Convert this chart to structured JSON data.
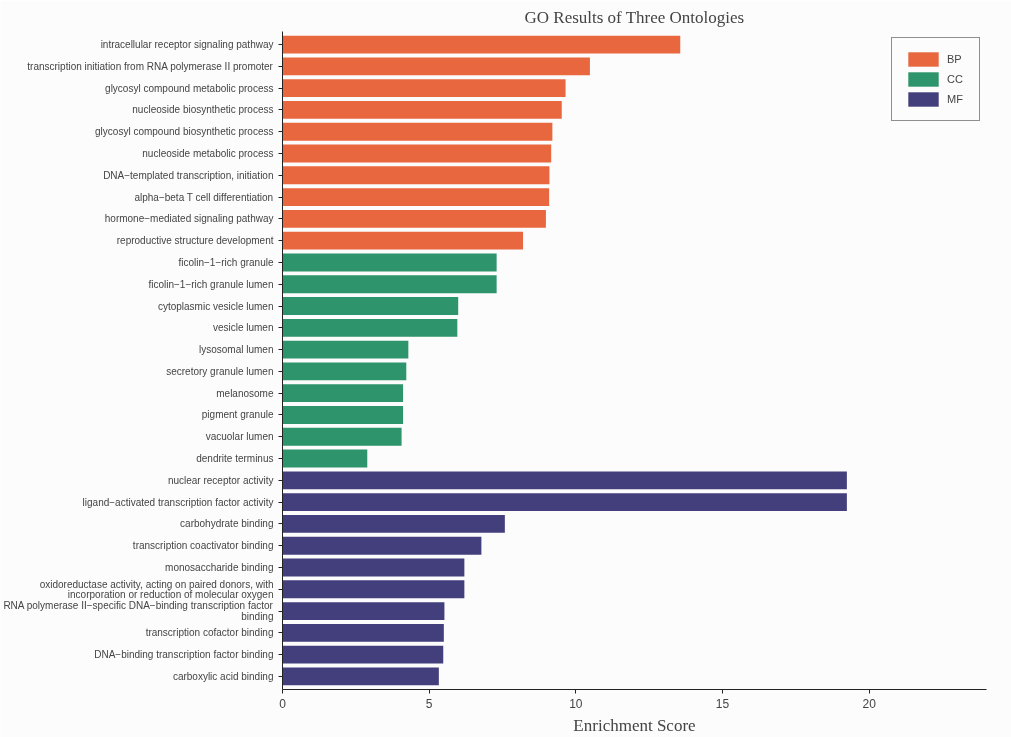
{
  "chart_data": {
    "type": "bar",
    "orientation": "horizontal",
    "title": "GO Results of Three Ontologies",
    "xlabel": "Enrichment Score",
    "categories": [
      "intracellular receptor signaling pathway",
      "transcription initiation from RNA polymerase II promoter",
      "glycosyl compound metabolic process",
      "nucleoside biosynthetic process",
      "glycosyl compound biosynthetic process",
      "nucleoside metabolic process",
      "DNA−templated transcription, initiation",
      "alpha−beta T cell differentiation",
      "hormone−mediated signaling pathway",
      "reproductive structure development",
      "ficolin−1−rich granule",
      "ficolin−1−rich granule lumen",
      "cytoplasmic vesicle lumen",
      "vesicle lumen",
      "lysosomal lumen",
      "secretory granule lumen",
      "melanosome",
      "pigment granule",
      "vacuolar lumen",
      "dendrite terminus",
      "nuclear receptor activity",
      "ligand−activated transcription factor activity",
      "carbohydrate binding",
      "transcription coactivator binding",
      "monosaccharide binding",
      "oxidoreductase activity, acting on paired donors, with\nincorporation or reduction of molecular oxygen",
      "RNA polymerase II−specific DNA−binding transcription factor\nbinding",
      "transcription cofactor binding",
      "DNA−binding transcription factor binding",
      "carboxylic acid binding"
    ],
    "series": [
      {
        "name": "BP",
        "color": "#e8673f",
        "values": [
          13.56,
          10.48,
          9.65,
          9.52,
          9.2,
          9.16,
          9.1,
          9.09,
          8.98,
          8.2,
          null,
          null,
          null,
          null,
          null,
          null,
          null,
          null,
          null,
          null,
          null,
          null,
          null,
          null,
          null,
          null,
          null,
          null,
          null,
          null
        ]
      },
      {
        "name": "CC",
        "color": "#2e946b",
        "values": [
          null,
          null,
          null,
          null,
          null,
          null,
          null,
          null,
          null,
          null,
          7.3,
          7.3,
          5.99,
          5.96,
          4.29,
          4.22,
          4.11,
          4.11,
          4.06,
          2.89,
          null,
          null,
          null,
          null,
          null,
          null,
          null,
          null,
          null,
          null
        ]
      },
      {
        "name": "MF",
        "color": "#433e7c",
        "values": [
          null,
          null,
          null,
          null,
          null,
          null,
          null,
          null,
          null,
          null,
          null,
          null,
          null,
          null,
          null,
          null,
          null,
          null,
          null,
          null,
          19.24,
          19.24,
          7.58,
          6.78,
          6.2,
          6.2,
          5.52,
          5.5,
          5.48,
          5.33
        ]
      }
    ],
    "xlim": [
      0,
      24
    ],
    "xticks": [
      0,
      5,
      10,
      15,
      20
    ],
    "grid": false,
    "legend": "top right"
  }
}
